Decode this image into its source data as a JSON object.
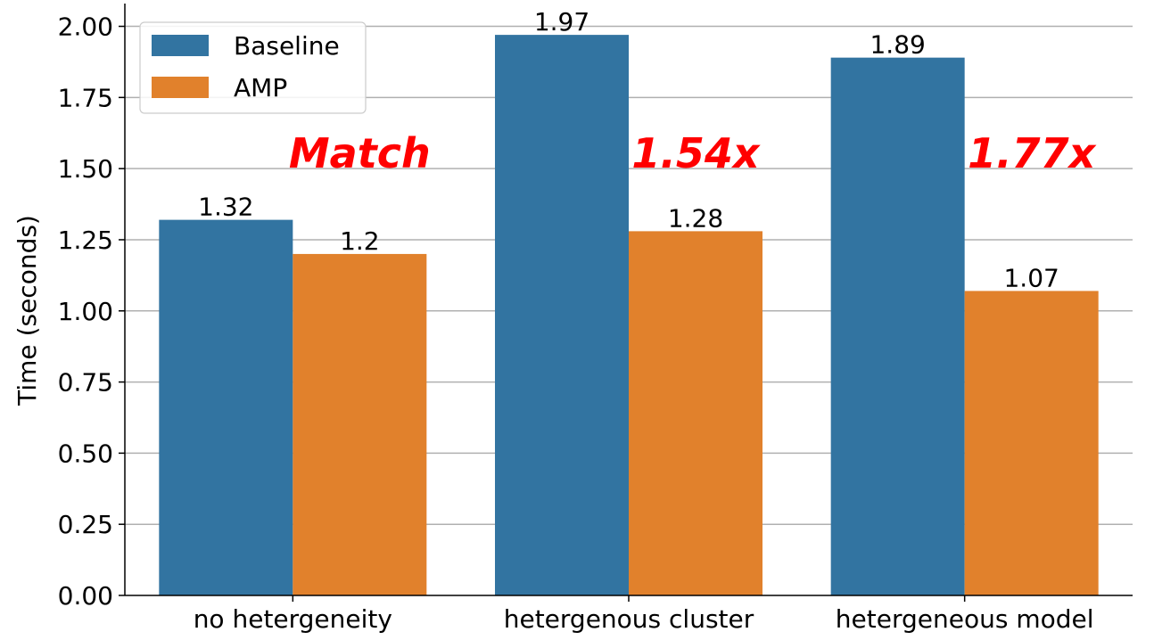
{
  "chart_data": {
    "type": "bar",
    "categories": [
      "no hetergeneity",
      "hetergenous cluster",
      "hetergeneous model"
    ],
    "series": [
      {
        "name": "Baseline",
        "values": [
          1.32,
          1.97,
          1.89
        ],
        "labels": [
          "1.32",
          "1.97",
          "1.89"
        ],
        "color": "#3274a1"
      },
      {
        "name": "AMP",
        "values": [
          1.2,
          1.28,
          1.07
        ],
        "labels": [
          "1.2",
          "1.28",
          "1.07"
        ],
        "color": "#e1812c"
      }
    ],
    "ylabel": "Time (seconds)",
    "xlabel": "",
    "ylim": [
      0,
      2.08
    ],
    "yticks": [
      "0.00",
      "0.25",
      "0.50",
      "0.75",
      "1.00",
      "1.25",
      "1.50",
      "1.75",
      "2.00"
    ],
    "grid": "horizontal",
    "legend_position": "top-left",
    "annotations": [
      "Match",
      "1.54x",
      "1.77x"
    ],
    "annotation_color": "#ff0000"
  }
}
